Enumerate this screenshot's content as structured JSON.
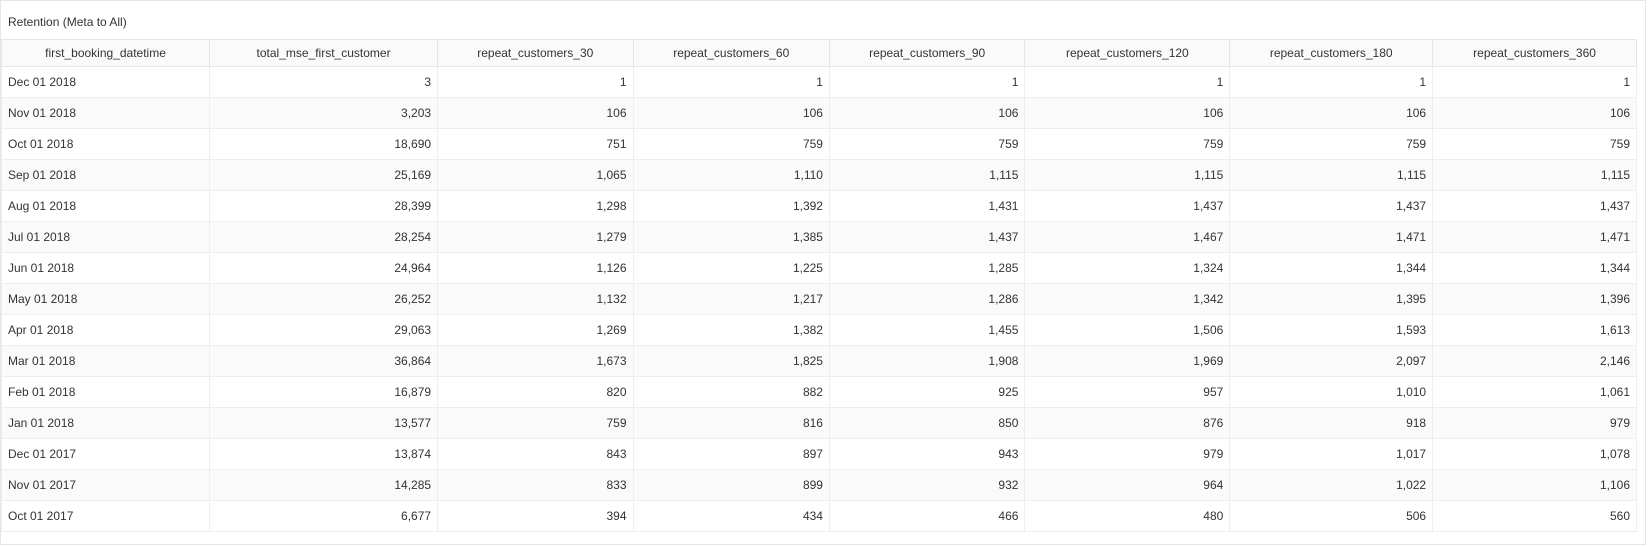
{
  "panel": {
    "title": "Retention (Meta to All)"
  },
  "table": {
    "columns": [
      "first_booking_datetime",
      "total_mse_first_customer",
      "repeat_customers_30",
      "repeat_customers_60",
      "repeat_customers_90",
      "repeat_customers_120",
      "repeat_customers_180",
      "repeat_customers_360"
    ],
    "rows": [
      [
        "Dec 01 2018",
        "3",
        "1",
        "1",
        "1",
        "1",
        "1",
        "1"
      ],
      [
        "Nov 01 2018",
        "3,203",
        "106",
        "106",
        "106",
        "106",
        "106",
        "106"
      ],
      [
        "Oct 01 2018",
        "18,690",
        "751",
        "759",
        "759",
        "759",
        "759",
        "759"
      ],
      [
        "Sep 01 2018",
        "25,169",
        "1,065",
        "1,110",
        "1,115",
        "1,115",
        "1,115",
        "1,115"
      ],
      [
        "Aug 01 2018",
        "28,399",
        "1,298",
        "1,392",
        "1,431",
        "1,437",
        "1,437",
        "1,437"
      ],
      [
        "Jul 01 2018",
        "28,254",
        "1,279",
        "1,385",
        "1,437",
        "1,467",
        "1,471",
        "1,471"
      ],
      [
        "Jun 01 2018",
        "24,964",
        "1,126",
        "1,225",
        "1,285",
        "1,324",
        "1,344",
        "1,344"
      ],
      [
        "May 01 2018",
        "26,252",
        "1,132",
        "1,217",
        "1,286",
        "1,342",
        "1,395",
        "1,396"
      ],
      [
        "Apr 01 2018",
        "29,063",
        "1,269",
        "1,382",
        "1,455",
        "1,506",
        "1,593",
        "1,613"
      ],
      [
        "Mar 01 2018",
        "36,864",
        "1,673",
        "1,825",
        "1,908",
        "1,969",
        "2,097",
        "2,146"
      ],
      [
        "Feb 01 2018",
        "16,879",
        "820",
        "882",
        "925",
        "957",
        "1,010",
        "1,061"
      ],
      [
        "Jan 01 2018",
        "13,577",
        "759",
        "816",
        "850",
        "876",
        "918",
        "979"
      ],
      [
        "Dec 01 2017",
        "13,874",
        "843",
        "897",
        "943",
        "979",
        "1,017",
        "1,078"
      ],
      [
        "Nov 01 2017",
        "14,285",
        "833",
        "899",
        "932",
        "964",
        "1,022",
        "1,106"
      ],
      [
        "Oct 01 2017",
        "6,677",
        "394",
        "434",
        "466",
        "480",
        "506",
        "560"
      ]
    ]
  }
}
